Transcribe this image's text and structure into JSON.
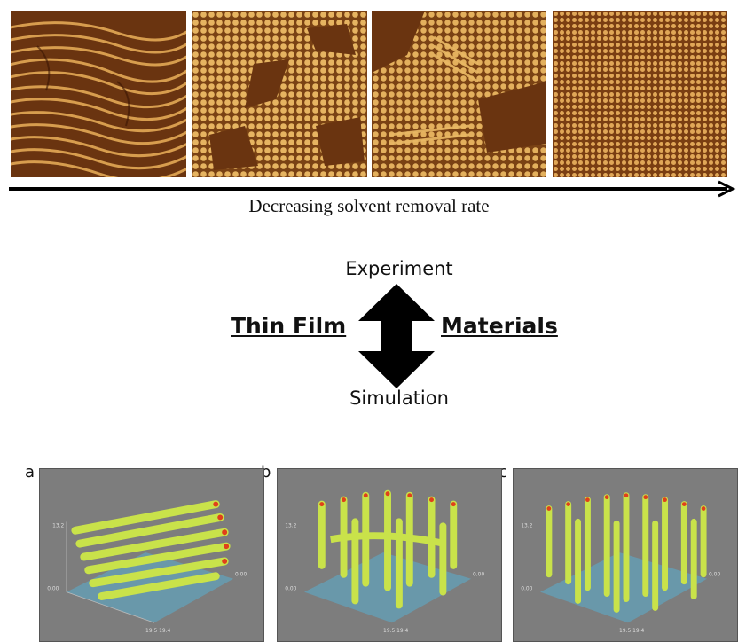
{
  "top_row": {
    "caption": "Decreasing solvent removal rate",
    "images": [
      {
        "name": "afm-fingerprint-lamellae"
      },
      {
        "name": "afm-mixed-domains"
      },
      {
        "name": "afm-mixed-cylinders"
      },
      {
        "name": "afm-hexagonal-dots"
      }
    ]
  },
  "center": {
    "experiment": "Experiment",
    "simulation": "Simulation",
    "left_label": "Thin Film",
    "right_label": "Materials"
  },
  "panels": [
    {
      "letter": "a",
      "z_tick": "13.2",
      "origin_tick": "0.00",
      "y_tick": "0.00",
      "x_tick": "19.5 19.4"
    },
    {
      "letter": "b",
      "z_tick": "13.2",
      "origin_tick": "0.00",
      "y_tick": "0.00",
      "x_tick": "19.5 19.4"
    },
    {
      "letter": "c",
      "z_tick": "13.2",
      "origin_tick": "0.00",
      "y_tick": "0.00",
      "x_tick": "19.5 19.4"
    }
  ],
  "colors": {
    "afm_dark": "#5a2a08",
    "afm_light": "#e8b35c",
    "sim_bg": "#7d7d7d",
    "sim_tube": "#c9e24a",
    "sim_core": "#e0401a",
    "sim_base": "#5aaed0"
  }
}
